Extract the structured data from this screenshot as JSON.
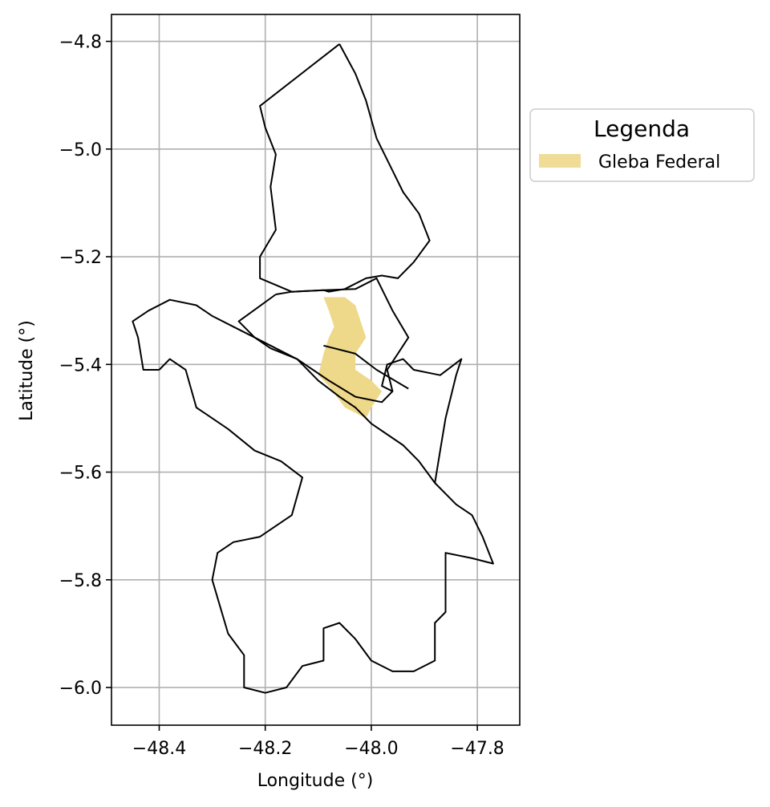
{
  "chart_data": {
    "type": "map",
    "xlabel": "Longitude (°)",
    "ylabel": "Latitude (°)",
    "xlim": [
      -48.49,
      -47.72
    ],
    "ylim": [
      -6.07,
      -4.75
    ],
    "xticks": [
      -48.4,
      -48.2,
      -48.0,
      -47.8
    ],
    "yticks": [
      -4.8,
      -5.0,
      -5.2,
      -5.4,
      -5.6,
      -5.8,
      -6.0
    ],
    "xtick_labels": [
      "−48.4",
      "−48.2",
      "−48.0",
      "−47.8"
    ],
    "ytick_labels": [
      "−4.8",
      "−5.0",
      "−5.2",
      "−5.4",
      "−5.6",
      "−5.8",
      "−6.0"
    ],
    "grid": true,
    "legend": {
      "title": "Legenda",
      "placement": "outside-right",
      "entries": [
        {
          "label": "Gleba Federal",
          "color": "#f0dc96"
        }
      ]
    },
    "boundary_color": "#000000",
    "fill_color": "#eed88a",
    "boundaries": [
      {
        "name": "north",
        "coords": [
          [
            -48.06,
            -4.805
          ],
          [
            -48.21,
            -4.92
          ],
          [
            -48.2,
            -4.96
          ],
          [
            -48.18,
            -5.01
          ],
          [
            -48.19,
            -5.07
          ],
          [
            -48.18,
            -5.15
          ],
          [
            -48.21,
            -5.2
          ],
          [
            -48.21,
            -5.24
          ],
          [
            -48.15,
            -5.265
          ],
          [
            -48.09,
            -5.262
          ],
          [
            -48.08,
            -5.265
          ],
          [
            -48.05,
            -5.26
          ],
          [
            -48.01,
            -5.24
          ],
          [
            -47.98,
            -5.235
          ],
          [
            -47.95,
            -5.24
          ],
          [
            -47.92,
            -5.21
          ],
          [
            -47.89,
            -5.17
          ],
          [
            -47.91,
            -5.12
          ],
          [
            -47.94,
            -5.08
          ],
          [
            -47.96,
            -5.04
          ],
          [
            -47.99,
            -4.98
          ],
          [
            -48.01,
            -4.91
          ],
          [
            -48.03,
            -4.86
          ],
          [
            -48.06,
            -4.805
          ]
        ]
      },
      {
        "name": "middle",
        "coords": [
          [
            -48.18,
            -5.27
          ],
          [
            -48.25,
            -5.32
          ],
          [
            -48.22,
            -5.35
          ],
          [
            -48.18,
            -5.37
          ],
          [
            -48.14,
            -5.39
          ],
          [
            -48.11,
            -5.41
          ],
          [
            -48.08,
            -5.43
          ],
          [
            -48.03,
            -5.46
          ],
          [
            -47.98,
            -5.47
          ],
          [
            -47.96,
            -5.45
          ],
          [
            -47.97,
            -5.41
          ],
          [
            -47.95,
            -5.38
          ],
          [
            -47.93,
            -5.35
          ],
          [
            -47.96,
            -5.3
          ],
          [
            -47.99,
            -5.24
          ],
          [
            -48.03,
            -5.26
          ],
          [
            -48.09,
            -5.262
          ],
          [
            -48.15,
            -5.265
          ],
          [
            -48.18,
            -5.27
          ]
        ]
      },
      {
        "name": "divider",
        "coords": [
          [
            -48.09,
            -5.365
          ],
          [
            -48.03,
            -5.38
          ],
          [
            -47.99,
            -5.41
          ],
          [
            -47.93,
            -5.445
          ]
        ]
      },
      {
        "name": "west",
        "coords": [
          [
            -48.4,
            -5.41
          ],
          [
            -48.43,
            -5.41
          ],
          [
            -48.44,
            -5.35
          ],
          [
            -48.45,
            -5.32
          ],
          [
            -48.42,
            -5.3
          ],
          [
            -48.38,
            -5.28
          ],
          [
            -48.33,
            -5.29
          ],
          [
            -48.3,
            -5.31
          ],
          [
            -48.26,
            -5.33
          ],
          [
            -48.22,
            -5.35
          ],
          [
            -48.19,
            -5.37
          ],
          [
            -48.14,
            -5.39
          ],
          [
            -48.1,
            -5.43
          ],
          [
            -48.06,
            -5.46
          ],
          [
            -48.03,
            -5.48
          ],
          [
            -48.0,
            -5.51
          ],
          [
            -47.97,
            -5.53
          ],
          [
            -47.94,
            -5.55
          ],
          [
            -47.91,
            -5.58
          ],
          [
            -47.88,
            -5.62
          ],
          [
            -47.84,
            -5.66
          ],
          [
            -47.81,
            -5.68
          ],
          [
            -47.79,
            -5.72
          ],
          [
            -47.77,
            -5.77
          ],
          [
            -47.81,
            -5.76
          ],
          [
            -47.86,
            -5.75
          ],
          [
            -47.86,
            -5.86
          ],
          [
            -47.88,
            -5.88
          ],
          [
            -47.88,
            -5.95
          ],
          [
            -47.92,
            -5.97
          ],
          [
            -47.96,
            -5.97
          ],
          [
            -48.0,
            -5.95
          ],
          [
            -48.03,
            -5.91
          ],
          [
            -48.06,
            -5.88
          ],
          [
            -48.09,
            -5.89
          ],
          [
            -48.09,
            -5.95
          ],
          [
            -48.13,
            -5.96
          ],
          [
            -48.16,
            -6.0
          ],
          [
            -48.2,
            -6.01
          ],
          [
            -48.24,
            -6.0
          ],
          [
            -48.24,
            -5.94
          ],
          [
            -48.27,
            -5.9
          ],
          [
            -48.3,
            -5.8
          ],
          [
            -48.29,
            -5.75
          ],
          [
            -48.26,
            -5.73
          ],
          [
            -48.21,
            -5.72
          ],
          [
            -48.15,
            -5.68
          ],
          [
            -48.13,
            -5.61
          ],
          [
            -48.17,
            -5.58
          ],
          [
            -48.22,
            -5.56
          ],
          [
            -48.27,
            -5.52
          ],
          [
            -48.33,
            -5.48
          ],
          [
            -48.35,
            -5.41
          ],
          [
            -48.38,
            -5.39
          ],
          [
            -48.4,
            -5.41
          ]
        ]
      },
      {
        "name": "east-lobe",
        "coords": [
          [
            -47.96,
            -5.45
          ],
          [
            -47.98,
            -5.44
          ],
          [
            -47.97,
            -5.4
          ],
          [
            -47.94,
            -5.39
          ],
          [
            -47.92,
            -5.41
          ],
          [
            -47.87,
            -5.42
          ],
          [
            -47.83,
            -5.39
          ],
          [
            -47.84,
            -5.42
          ],
          [
            -47.85,
            -5.46
          ],
          [
            -47.86,
            -5.5
          ],
          [
            -47.87,
            -5.56
          ],
          [
            -47.88,
            -5.62
          ]
        ]
      }
    ],
    "gleba_polygon": [
      [
        -48.09,
        -5.275
      ],
      [
        -48.07,
        -5.275
      ],
      [
        -48.05,
        -5.275
      ],
      [
        -48.03,
        -5.29
      ],
      [
        -48.02,
        -5.32
      ],
      [
        -48.01,
        -5.35
      ],
      [
        -48.03,
        -5.38
      ],
      [
        -48.03,
        -5.41
      ],
      [
        -48.0,
        -5.43
      ],
      [
        -47.98,
        -5.45
      ],
      [
        -48.0,
        -5.48
      ],
      [
        -48.01,
        -5.5
      ],
      [
        -48.05,
        -5.48
      ],
      [
        -48.08,
        -5.44
      ],
      [
        -48.1,
        -5.42
      ],
      [
        -48.09,
        -5.38
      ],
      [
        -48.08,
        -5.35
      ],
      [
        -48.07,
        -5.33
      ],
      [
        -48.08,
        -5.3
      ],
      [
        -48.09,
        -5.275
      ]
    ]
  }
}
